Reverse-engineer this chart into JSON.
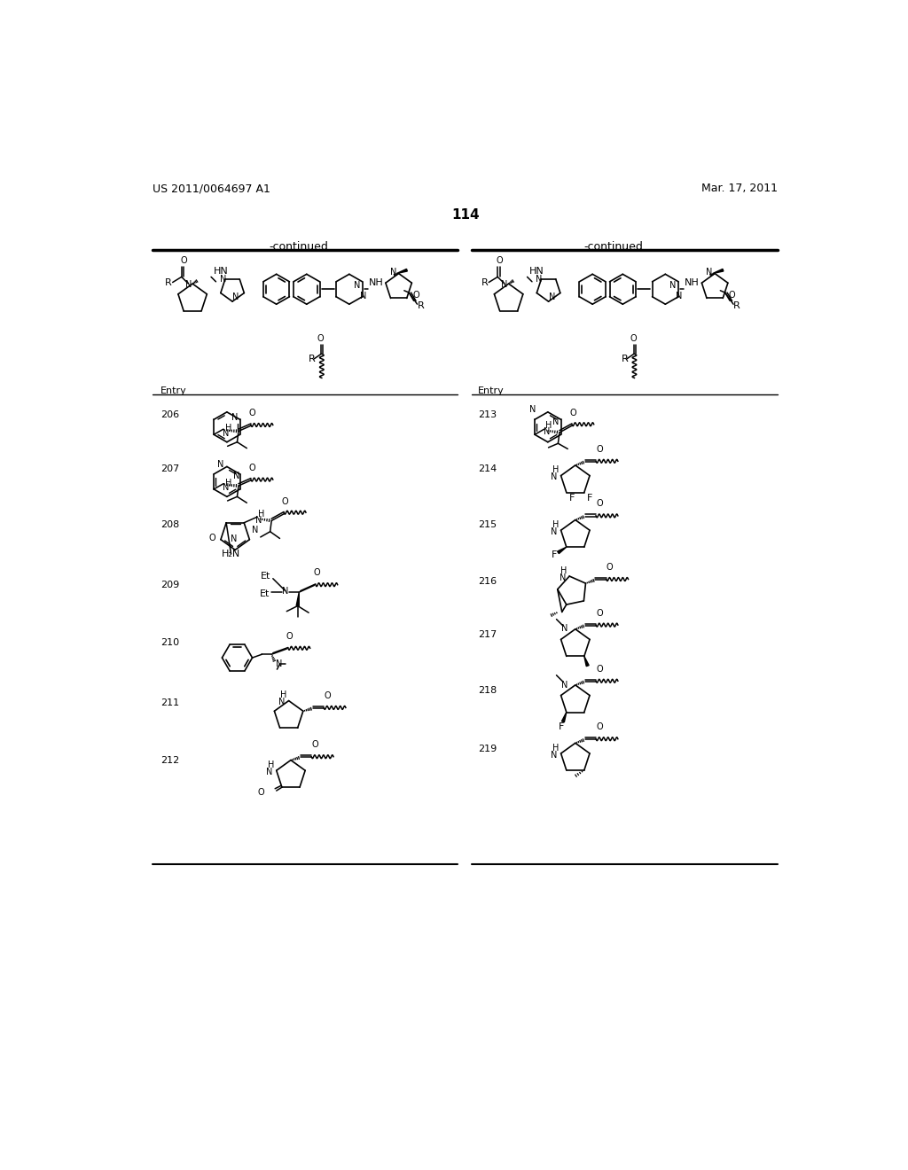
{
  "page_number": "114",
  "patent_number": "US 2011/0064697 A1",
  "patent_date": "Mar. 17, 2011",
  "background_color": "#ffffff",
  "continued_label": "-continued",
  "left_entries": [
    "206",
    "207",
    "208",
    "209",
    "210",
    "211",
    "212"
  ],
  "right_entries": [
    "213",
    "214",
    "215",
    "216",
    "217",
    "218",
    "219"
  ],
  "figsize": [
    10.24,
    13.2
  ],
  "dpi": 100
}
